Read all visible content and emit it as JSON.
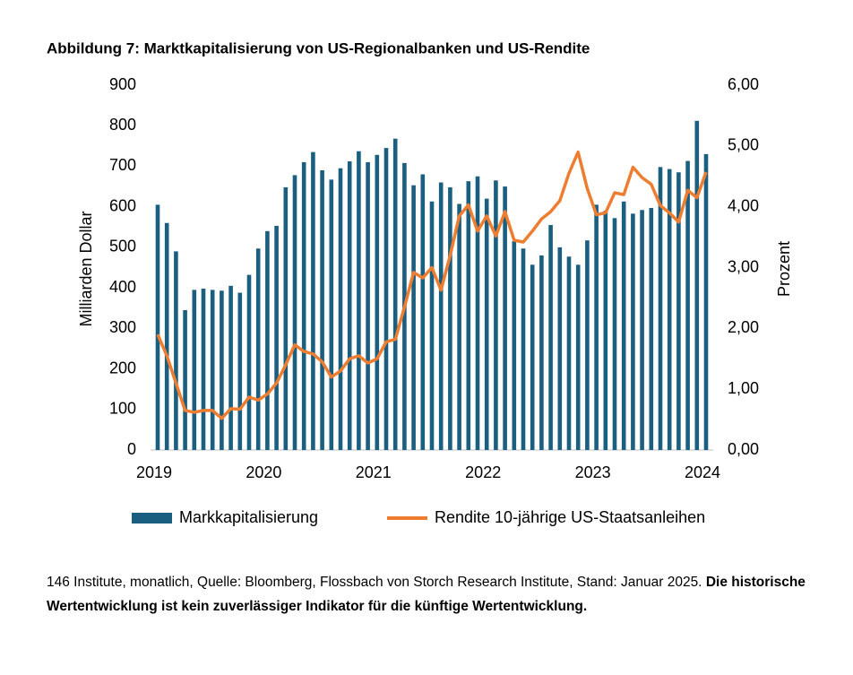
{
  "chart_data": {
    "type": "bar-line",
    "title": "Abbildung 7: Marktkapitalisierung von US-Regionalbanken und US-Rendite",
    "ylabel": "Milliarden Dollar",
    "y2label": "Prozent",
    "categories": [
      "2019",
      null,
      null,
      null,
      null,
      null,
      null,
      null,
      null,
      null,
      null,
      null,
      "2020",
      null,
      null,
      null,
      null,
      null,
      null,
      null,
      null,
      null,
      null,
      null,
      "2021",
      null,
      null,
      null,
      null,
      null,
      null,
      null,
      null,
      null,
      null,
      null,
      "2022",
      null,
      null,
      null,
      null,
      null,
      null,
      null,
      null,
      null,
      null,
      null,
      "2023",
      null,
      null,
      null,
      null,
      null,
      null,
      null,
      null,
      null,
      null,
      null,
      "2024"
    ],
    "series": [
      {
        "name": "Markkapitalisierung",
        "color": "#1a5e80",
        "kind": "bar",
        "values": [
          605,
          560,
          490,
          345,
          395,
          398,
          395,
          393,
          405,
          388,
          432,
          497,
          540,
          553,
          648,
          678,
          710,
          735,
          690,
          667,
          695,
          712,
          737,
          710,
          728,
          745,
          768,
          708,
          653,
          680,
          613,
          660,
          648,
          607,
          663,
          675,
          620,
          665,
          650,
          515,
          497,
          457,
          480,
          555,
          500,
          477,
          457,
          517,
          605,
          590,
          572,
          613,
          583,
          592,
          597,
          698,
          693,
          685,
          713,
          812,
          730
        ]
      },
      {
        "name": "Rendite 10-jährige US-Staatsanleihen",
        "color": "#ed7d31",
        "kind": "line",
        "axis": "y2",
        "values": [
          1.9,
          1.55,
          1.1,
          0.65,
          0.62,
          0.65,
          0.65,
          0.52,
          0.68,
          0.67,
          0.87,
          0.82,
          0.92,
          1.1,
          1.4,
          1.73,
          1.62,
          1.58,
          1.45,
          1.2,
          1.3,
          1.5,
          1.55,
          1.43,
          1.5,
          1.78,
          1.82,
          2.35,
          2.92,
          2.83,
          3.0,
          2.63,
          3.2,
          3.85,
          4.03,
          3.6,
          3.85,
          3.52,
          3.92,
          3.45,
          3.42,
          3.6,
          3.8,
          3.92,
          4.1,
          4.55,
          4.9,
          4.3,
          3.87,
          3.9,
          4.23,
          4.2,
          4.65,
          4.48,
          4.37,
          4.02,
          3.9,
          3.75,
          4.27,
          4.15,
          4.57
        ]
      }
    ],
    "ylim": [
      0,
      900
    ],
    "yticks": [
      0,
      100,
      200,
      300,
      400,
      500,
      600,
      700,
      800,
      900
    ],
    "y2lim": [
      0,
      6
    ],
    "y2ticks": [
      {
        "value": 0,
        "label": "0,00"
      },
      {
        "value": 1,
        "label": "1,00"
      },
      {
        "value": 2,
        "label": "2,00"
      },
      {
        "value": 3,
        "label": "3,00"
      },
      {
        "value": 4,
        "label": "4,00"
      },
      {
        "value": 5,
        "label": "5,00"
      },
      {
        "value": 6,
        "label": "6,00"
      }
    ],
    "legend": "bottom",
    "note": "146 Institute, monatlich, Quelle: Bloomberg, Flossbach von Storch Research Institute, Stand: Januar 2025.",
    "note_bold": "Die historische Wertentwicklung ist kein zuverlässiger Indikator für die künftige Wertentwicklung."
  }
}
